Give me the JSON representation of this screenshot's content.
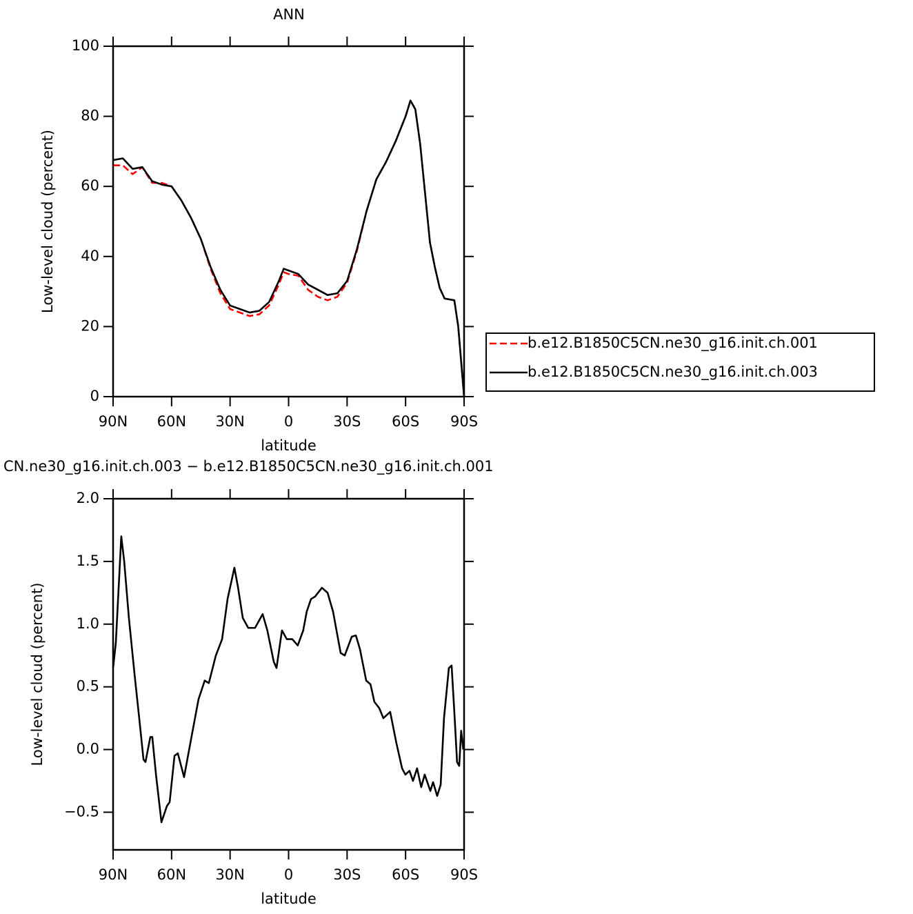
{
  "chart_data": [
    {
      "type": "line",
      "title": "ANN",
      "xlabel": "latitude",
      "ylabel": "Low-level cloud (percent)",
      "x": [
        90,
        85,
        80,
        75,
        70,
        65,
        60,
        55,
        50,
        45,
        40,
        35,
        30,
        25,
        20,
        15,
        10,
        5,
        2.5,
        0,
        -5,
        -10,
        -15,
        -20,
        -25,
        -30,
        -35,
        -40,
        -45,
        -50,
        -55,
        -60,
        -62.5,
        -65,
        -67.5,
        -70,
        -72.5,
        -75,
        -77.5,
        -80,
        -85,
        -87,
        -90
      ],
      "series": [
        {
          "name": "b.e12.B1850C5CN.ne30_g16.init.ch.001",
          "color": "#ff0000",
          "line_style": "dashed",
          "values": [
            66,
            66,
            63.5,
            65.5,
            61,
            61,
            60,
            56,
            51,
            45,
            36.5,
            29.5,
            25,
            24,
            23,
            23.5,
            26,
            32,
            35.5,
            35,
            34.5,
            30.5,
            28.5,
            27.5,
            28.5,
            32.5,
            41.5,
            53,
            62,
            67,
            73,
            80,
            84.5,
            82,
            72,
            58,
            44,
            37,
            31,
            28,
            27.5,
            20,
            0
          ]
        },
        {
          "name": "b.e12.B1850C5CN.ne30_g16.init.ch.003",
          "color": "#000000",
          "line_style": "solid",
          "values": [
            67.5,
            68,
            65,
            65.5,
            61.5,
            60.5,
            60,
            56,
            51,
            45,
            37,
            30.5,
            26,
            25,
            24,
            24.5,
            27,
            33,
            36.5,
            36,
            35,
            32,
            30.5,
            29,
            29.5,
            33,
            42,
            53,
            62,
            67,
            73,
            80,
            84.5,
            82,
            72,
            58,
            44,
            37,
            31,
            28,
            27.5,
            20,
            0
          ]
        }
      ],
      "xlim": [
        90,
        -90
      ],
      "xticks": [
        {
          "value": 90,
          "label": "90N"
        },
        {
          "value": 60,
          "label": "60N"
        },
        {
          "value": 30,
          "label": "30N"
        },
        0,
        {
          "value": -30,
          "label": "30S"
        },
        {
          "value": -60,
          "label": "60S"
        },
        {
          "value": -90,
          "label": "90S"
        }
      ],
      "ylim": [
        0,
        100
      ],
      "yticks": [
        0,
        20,
        40,
        60,
        80,
        100
      ]
    },
    {
      "type": "line",
      "title": "CN.ne30_g16.init.ch.003 − b.e12.B1850C5CN.ne30_g16.init.ch.001",
      "xlabel": "latitude",
      "ylabel": "Low-level cloud (percent)",
      "x": [
        90,
        88.6,
        85.8,
        84.3,
        81.9,
        79,
        76.6,
        74.4,
        73.4,
        70.9,
        69.9,
        68,
        65.2,
        62.4,
        61,
        58.5,
        56.8,
        53.6,
        50.4,
        46.2,
        43,
        40.9,
        37.3,
        34.1,
        31.3,
        27.8,
        26,
        23.5,
        20.7,
        17.2,
        13.3,
        10.9,
        7.6,
        6.2,
        3.4,
        0.9,
        -1.9,
        -4.7,
        -7.5,
        -9.3,
        -11.5,
        -13.6,
        -17.1,
        -20,
        -22.8,
        -26.7,
        -28.8,
        -32.4,
        -34.5,
        -36.6,
        -39.8,
        -42,
        -44,
        -46.5,
        -48.6,
        -52.1,
        -55.3,
        -58.2,
        -59.9,
        -62,
        -63.8,
        -65.9,
        -68,
        -69.8,
        -72.7,
        -74.1,
        -76.2,
        -78,
        -79.7,
        -82.2,
        -83.6,
        -85,
        -86.4,
        -87.5,
        -88.5,
        -89.6
      ],
      "values": [
        0.65,
        0.85,
        1.7,
        1.5,
        1.05,
        0.6,
        0.25,
        -0.08,
        -0.1,
        0.1,
        0.1,
        -0.2,
        -0.58,
        -0.45,
        -0.42,
        -0.05,
        -0.03,
        -0.22,
        0.05,
        0.4,
        0.55,
        0.53,
        0.75,
        0.88,
        1.2,
        1.45,
        1.3,
        1.05,
        0.97,
        0.97,
        1.08,
        0.95,
        0.7,
        0.65,
        0.95,
        0.88,
        0.88,
        0.83,
        0.95,
        1.1,
        1.2,
        1.22,
        1.29,
        1.25,
        1.1,
        0.77,
        0.75,
        0.9,
        0.91,
        0.8,
        0.55,
        0.52,
        0.38,
        0.33,
        0.25,
        0.3,
        0.05,
        -0.15,
        -0.2,
        -0.17,
        -0.25,
        -0.15,
        -0.3,
        -0.2,
        -0.33,
        -0.26,
        -0.37,
        -0.28,
        0.25,
        0.65,
        0.67,
        0.3,
        -0.1,
        -0.13,
        0.15,
        0
      ],
      "color": "#000000",
      "line_style": "solid",
      "xlim": [
        90,
        -90
      ],
      "xticks": [
        {
          "value": 90,
          "label": "90N"
        },
        {
          "value": 60,
          "label": "60N"
        },
        {
          "value": 30,
          "label": "30N"
        },
        0,
        {
          "value": -30,
          "label": "30S"
        },
        {
          "value": -60,
          "label": "60S"
        },
        {
          "value": -90,
          "label": "90S"
        }
      ],
      "ylim": [
        -0.8,
        2.0
      ],
      "yticks": [
        {
          "value": -0.5,
          "label": "−0.5"
        },
        {
          "value": 0,
          "label": "0.0"
        },
        0.5,
        {
          "value": 1,
          "label": "1.0"
        },
        1.5,
        {
          "value": 2,
          "label": "2.0"
        }
      ]
    }
  ]
}
